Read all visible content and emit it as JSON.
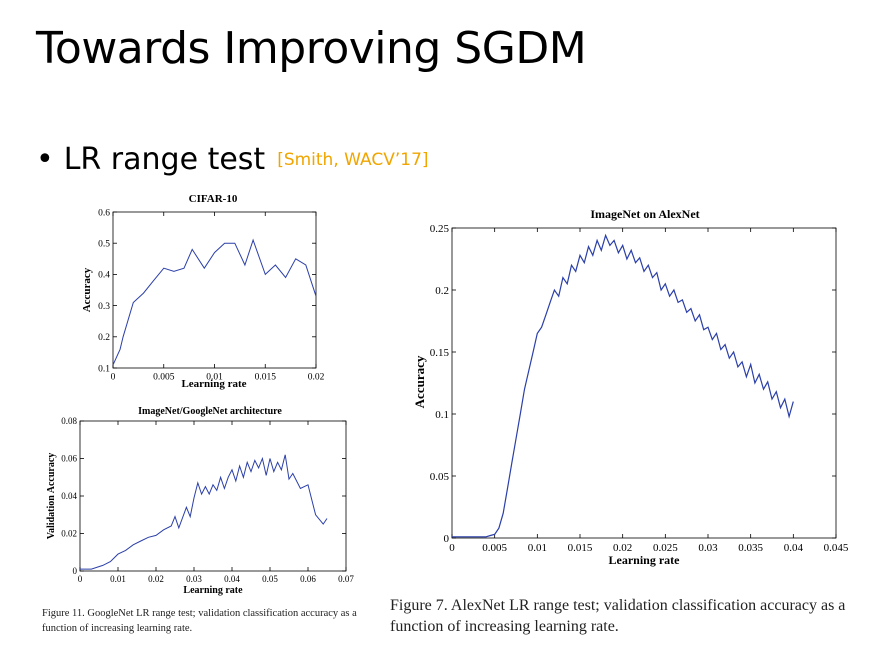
{
  "slide": {
    "title": "Towards Improving SGDM",
    "bullet": {
      "dot": "•",
      "text": "LR range test",
      "citation": "[Smith, WACV’17]",
      "citation_color": "#f0a500"
    }
  },
  "figures": {
    "cifar": {
      "title": "CIFAR-10",
      "xlabel": "Learning rate",
      "ylabel": "Accuracy",
      "xticks": [
        "0",
        "0.005",
        "0.01",
        "0.015",
        "0.02"
      ],
      "yticks": [
        "0.1",
        "0.2",
        "0.3",
        "0.4",
        "0.5",
        "0.6"
      ]
    },
    "googlenet": {
      "title": "ImageNet/GoogleNet architecture",
      "xlabel": "Learning rate",
      "ylabel": "Validation Accuracy",
      "xticks": [
        "0",
        "0.01",
        "0.02",
        "0.03",
        "0.04",
        "0.05",
        "0.06",
        "0.07"
      ],
      "yticks": [
        "0",
        "0.02",
        "0.04",
        "0.06",
        "0.08"
      ]
    },
    "alexnet": {
      "title": "ImageNet on AlexNet",
      "xlabel": "Learning rate",
      "ylabel": "Accuracy",
      "xticks": [
        "0",
        "0.005",
        "0.01",
        "0.015",
        "0.02",
        "0.025",
        "0.03",
        "0.035",
        "0.04",
        "0.045"
      ],
      "yticks": [
        "0",
        "0.05",
        "0.1",
        "0.15",
        "0.2",
        "0.25"
      ]
    }
  },
  "captions": {
    "googlenet": "Figure 11. GoogleNet LR range test; validation classification accuracy as a function of increasing learning rate.",
    "alexnet": "Figure 7. AlexNet LR range test; validation classification accuracy as a function of increasing learning rate."
  },
  "chart_data": [
    {
      "id": "cifar",
      "type": "line",
      "title": "CIFAR-10",
      "xlabel": "Learning rate",
      "ylabel": "Accuracy",
      "xlim": [
        0,
        0.02
      ],
      "ylim": [
        0.1,
        0.6
      ],
      "line_color": "#2b3fa8",
      "x": [
        0,
        0.0007,
        0.001,
        0.002,
        0.003,
        0.004,
        0.005,
        0.006,
        0.007,
        0.0078,
        0.009,
        0.01,
        0.011,
        0.012,
        0.013,
        0.0138,
        0.015,
        0.016,
        0.017,
        0.018,
        0.019,
        0.02
      ],
      "y": [
        0.11,
        0.16,
        0.2,
        0.31,
        0.34,
        0.38,
        0.42,
        0.41,
        0.42,
        0.48,
        0.42,
        0.47,
        0.5,
        0.5,
        0.43,
        0.51,
        0.4,
        0.43,
        0.39,
        0.45,
        0.43,
        0.33
      ]
    },
    {
      "id": "googlenet",
      "type": "line",
      "title": "ImageNet/GoogleNet architecture",
      "xlabel": "Learning rate",
      "ylabel": "Validation Accuracy",
      "xlim": [
        0,
        0.07
      ],
      "ylim": [
        0,
        0.08
      ],
      "line_color": "#2b3fa8",
      "x": [
        0,
        0.003,
        0.006,
        0.008,
        0.01,
        0.012,
        0.014,
        0.016,
        0.018,
        0.02,
        0.022,
        0.024,
        0.025,
        0.026,
        0.028,
        0.029,
        0.03,
        0.031,
        0.032,
        0.033,
        0.034,
        0.035,
        0.036,
        0.037,
        0.038,
        0.039,
        0.04,
        0.041,
        0.042,
        0.043,
        0.044,
        0.045,
        0.046,
        0.047,
        0.048,
        0.049,
        0.05,
        0.051,
        0.052,
        0.053,
        0.054,
        0.055,
        0.056,
        0.058,
        0.06,
        0.062,
        0.064,
        0.065
      ],
      "y": [
        0.001,
        0.001,
        0.003,
        0.005,
        0.009,
        0.011,
        0.014,
        0.016,
        0.018,
        0.019,
        0.022,
        0.024,
        0.029,
        0.023,
        0.034,
        0.029,
        0.039,
        0.047,
        0.041,
        0.045,
        0.041,
        0.046,
        0.043,
        0.05,
        0.044,
        0.05,
        0.054,
        0.048,
        0.056,
        0.05,
        0.058,
        0.053,
        0.059,
        0.055,
        0.06,
        0.051,
        0.06,
        0.053,
        0.058,
        0.054,
        0.062,
        0.049,
        0.052,
        0.044,
        0.046,
        0.03,
        0.025,
        0.028
      ]
    },
    {
      "id": "alexnet",
      "type": "line",
      "title": "ImageNet on AlexNet",
      "xlabel": "Learning rate",
      "ylabel": "Accuracy",
      "xlim": [
        0,
        0.045
      ],
      "ylim": [
        0,
        0.25
      ],
      "line_color": "#2b3fa8",
      "x": [
        0,
        0.001,
        0.002,
        0.003,
        0.004,
        0.0045,
        0.005,
        0.0055,
        0.006,
        0.0065,
        0.007,
        0.0075,
        0.008,
        0.0085,
        0.009,
        0.0095,
        0.01,
        0.0105,
        0.011,
        0.0115,
        0.012,
        0.0125,
        0.013,
        0.0135,
        0.014,
        0.0145,
        0.015,
        0.0155,
        0.016,
        0.0165,
        0.017,
        0.0175,
        0.018,
        0.0185,
        0.019,
        0.0195,
        0.02,
        0.0205,
        0.021,
        0.0215,
        0.022,
        0.0225,
        0.023,
        0.0235,
        0.024,
        0.0245,
        0.025,
        0.0255,
        0.026,
        0.0265,
        0.027,
        0.0275,
        0.028,
        0.0285,
        0.029,
        0.0295,
        0.03,
        0.0305,
        0.031,
        0.0315,
        0.032,
        0.0325,
        0.033,
        0.0335,
        0.034,
        0.0345,
        0.035,
        0.0355,
        0.036,
        0.0365,
        0.037,
        0.0375,
        0.038,
        0.0385,
        0.039,
        0.0395,
        0.04
      ],
      "y": [
        0.001,
        0.001,
        0.001,
        0.001,
        0.001,
        0.002,
        0.003,
        0.008,
        0.02,
        0.04,
        0.06,
        0.08,
        0.1,
        0.12,
        0.135,
        0.15,
        0.165,
        0.17,
        0.18,
        0.19,
        0.2,
        0.195,
        0.21,
        0.205,
        0.22,
        0.215,
        0.228,
        0.222,
        0.235,
        0.228,
        0.24,
        0.232,
        0.244,
        0.236,
        0.24,
        0.23,
        0.236,
        0.225,
        0.232,
        0.222,
        0.226,
        0.215,
        0.22,
        0.21,
        0.214,
        0.2,
        0.205,
        0.195,
        0.2,
        0.19,
        0.192,
        0.182,
        0.185,
        0.175,
        0.18,
        0.168,
        0.17,
        0.16,
        0.165,
        0.152,
        0.156,
        0.145,
        0.15,
        0.138,
        0.142,
        0.13,
        0.14,
        0.125,
        0.132,
        0.12,
        0.126,
        0.112,
        0.118,
        0.105,
        0.112,
        0.098,
        0.11
      ]
    }
  ]
}
